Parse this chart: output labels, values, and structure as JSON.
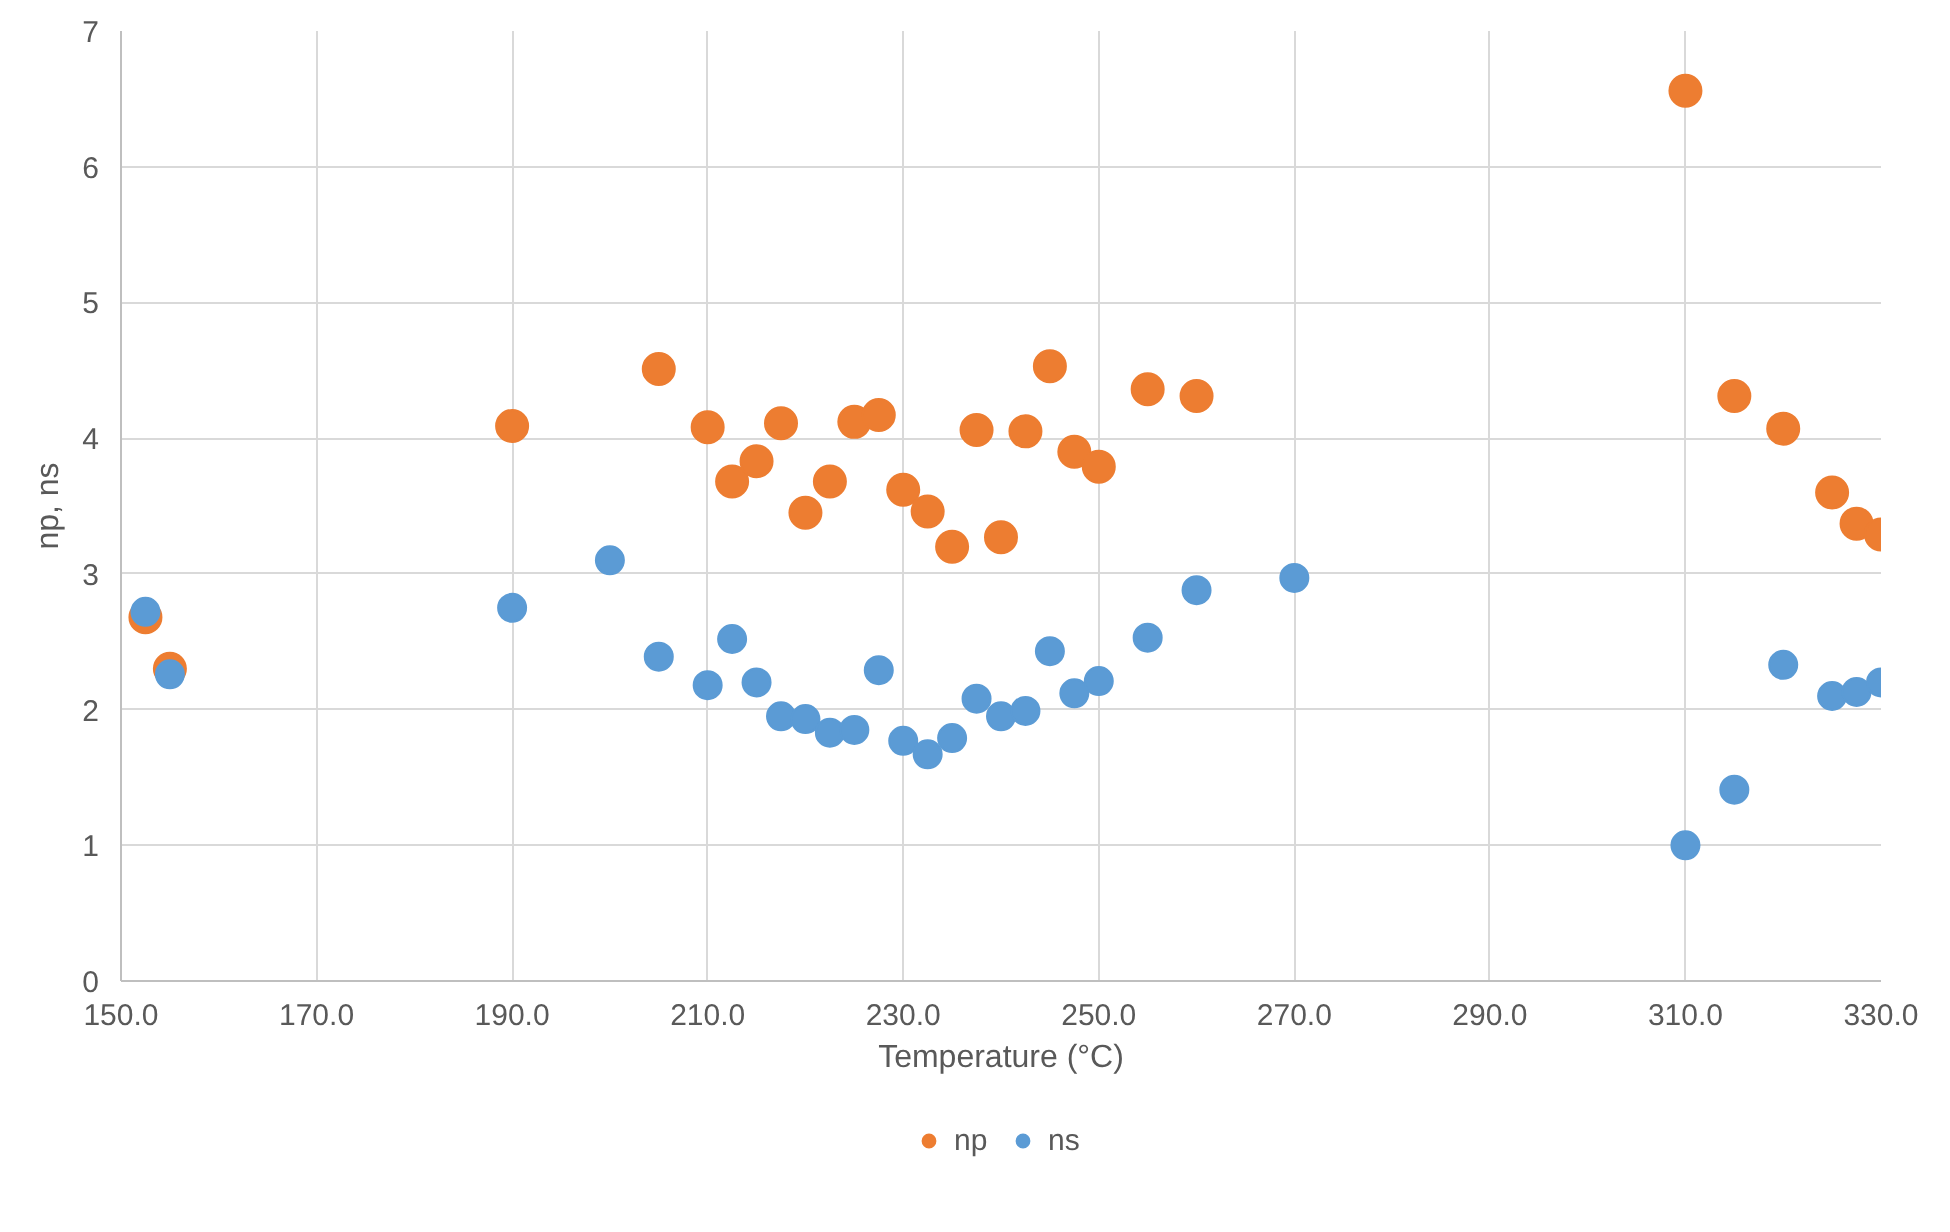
{
  "chart_data": {
    "type": "scatter",
    "xlabel": "Temperature (°C)",
    "ylabel": "np, ns",
    "xlim": [
      150,
      330
    ],
    "ylim": [
      0,
      7
    ],
    "xticks": [
      {
        "value": 150,
        "label": "150.0"
      },
      {
        "value": 170,
        "label": "170.0"
      },
      {
        "value": 190,
        "label": "190.0"
      },
      {
        "value": 210,
        "label": "210.0"
      },
      {
        "value": 230,
        "label": "230.0"
      },
      {
        "value": 250,
        "label": "250.0"
      },
      {
        "value": 270,
        "label": "270.0"
      },
      {
        "value": 290,
        "label": "290.0"
      },
      {
        "value": 310,
        "label": "310.0"
      },
      {
        "value": 330,
        "label": "330.0"
      }
    ],
    "yticks": [
      0,
      1,
      2,
      3,
      4,
      5,
      6,
      7
    ],
    "grid": true,
    "legend": "bottom",
    "marker": "circle",
    "series": [
      {
        "name": "np",
        "color": "#ed7d31",
        "x": [
          152.5,
          155,
          190,
          205,
          210,
          212.5,
          215,
          217.5,
          220,
          222.5,
          225,
          227.5,
          230,
          232.5,
          235,
          237.5,
          240,
          242.5,
          245,
          247.5,
          250,
          255,
          260,
          310,
          315,
          320,
          325,
          327.5,
          330
        ],
        "values": [
          2.68,
          2.3,
          4.09,
          4.51,
          4.08,
          3.68,
          3.83,
          4.11,
          3.45,
          3.68,
          4.12,
          4.17,
          3.62,
          3.46,
          3.2,
          4.06,
          3.27,
          4.05,
          4.53,
          3.9,
          3.79,
          4.36,
          4.31,
          6.56,
          4.31,
          4.07,
          3.6,
          3.37,
          3.29
        ]
      },
      {
        "name": "ns",
        "color": "#5b9bd5",
        "x": [
          152.5,
          155,
          190,
          200,
          205,
          210,
          212.5,
          215,
          217.5,
          220,
          222.5,
          225,
          227.5,
          230,
          232.5,
          235,
          237.5,
          240,
          242.5,
          245,
          247.5,
          250,
          255,
          260,
          270,
          310,
          315,
          320,
          325,
          327.5,
          330
        ],
        "values": [
          2.72,
          2.26,
          2.75,
          3.1,
          2.39,
          2.18,
          2.52,
          2.2,
          1.95,
          1.93,
          1.83,
          1.85,
          2.29,
          1.77,
          1.67,
          1.79,
          2.08,
          1.95,
          1.99,
          2.43,
          2.12,
          2.21,
          2.53,
          2.88,
          2.97,
          1.0,
          1.41,
          2.33,
          2.1,
          2.13,
          2.2
        ]
      }
    ]
  }
}
